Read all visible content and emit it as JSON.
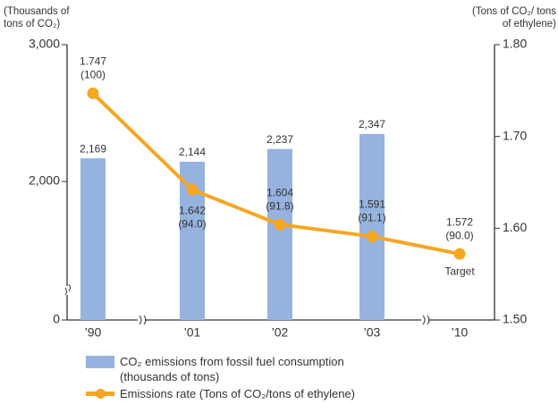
{
  "chart_data": {
    "type": "bar_line",
    "y_label": "(Thousands of tons of CO₂)",
    "y2_label": "(Tons of CO₂/ tons of ethylene)",
    "categories": [
      "’90",
      "’01",
      "’02",
      "’03",
      "’10"
    ],
    "series": [
      {
        "name": "CO₂ emissions from fossil fuel consumption (thousands of tons)",
        "type": "bar",
        "color": "#95b3de",
        "values": [
          2169,
          2144,
          2237,
          2347,
          null
        ],
        "value_labels": [
          "2,169",
          "2,144",
          "2,237",
          "2,347",
          null
        ]
      },
      {
        "name": "Emissions rate (Tons of CO₂/tons of ethylene)",
        "type": "line",
        "axis": "y2",
        "color": "#f5a623",
        "values": [
          1.747,
          1.642,
          1.604,
          1.591,
          1.572
        ],
        "index_labels": [
          "(100)",
          "(94.0)",
          "(91.8)",
          "(91.1)",
          "(90.0)"
        ]
      }
    ],
    "ylim": [
      0,
      3000
    ],
    "y_break": [
      0,
      1000
    ],
    "yticks": [
      0,
      {
        "value": 2000,
        "label": "2,000"
      },
      {
        "value": 3000,
        "label": "3,000"
      }
    ],
    "y2lim": [
      1.5,
      1.8
    ],
    "y2ticks": [
      {
        "value": 1.5,
        "label": "1.50"
      },
      {
        "value": 1.6,
        "label": "1.60"
      },
      {
        "value": 1.7,
        "label": "1.70"
      },
      {
        "value": 1.8,
        "label": "1.80"
      }
    ],
    "annotations": [
      {
        "text": "Target",
        "category": 4
      }
    ]
  }
}
